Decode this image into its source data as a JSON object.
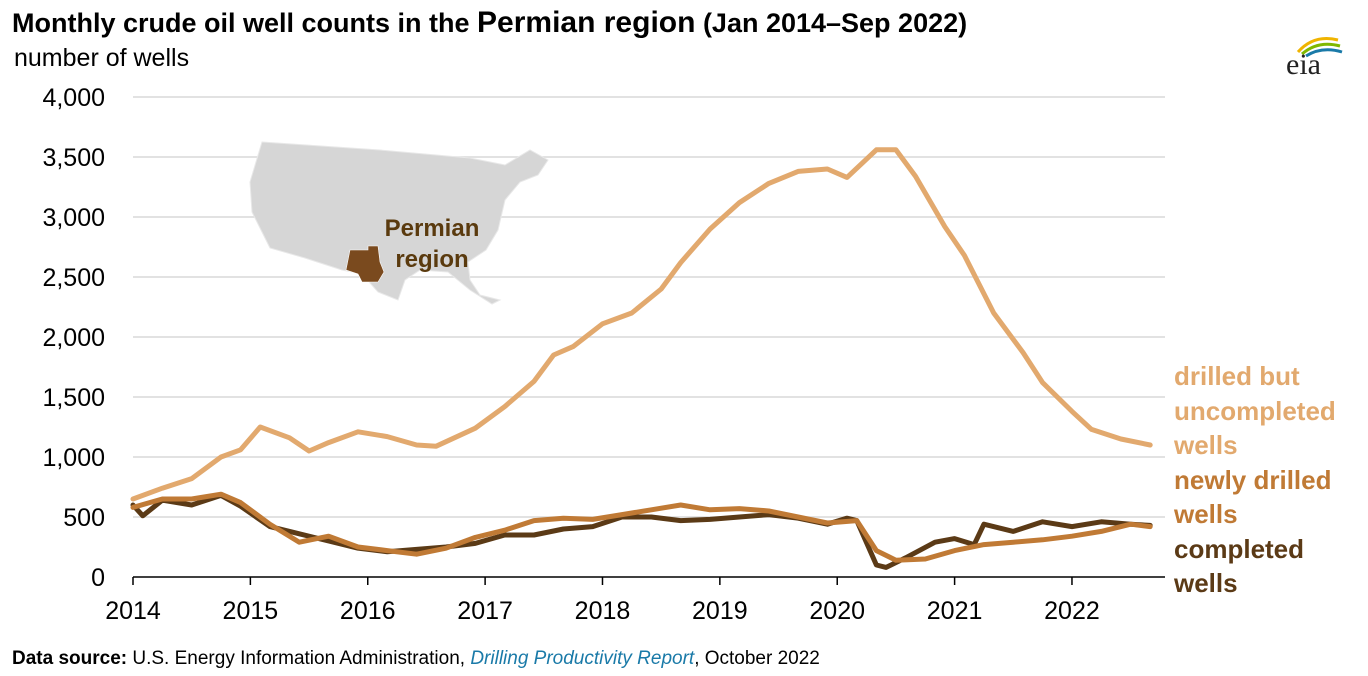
{
  "title_main": "Monthly crude oil well counts in the ",
  "title_region": "Permian region",
  "title_period": " (Jan 2014–Sep 2022)",
  "subtitle": "number of wells",
  "logo_text": "eia",
  "map_label_line1": "Permian",
  "map_label_line2": "region",
  "source": {
    "label": "Data source:",
    "text1": " U.S. Energy Information Administration, ",
    "report": "Drilling Productivity Report",
    "text2": ", October 2022"
  },
  "colors": {
    "duc": "#e2a96e",
    "drilled": "#c07a35",
    "completed": "#5b3a16",
    "grid": "#d9d9d9",
    "map": "#d6d6d6",
    "permian": "#7a4a1e"
  },
  "chart_data": {
    "type": "line",
    "ylim": [
      0,
      4000
    ],
    "yticks": [
      0,
      500,
      1000,
      1500,
      2000,
      2500,
      3000,
      3500,
      4000
    ],
    "ytick_labels": [
      "0",
      "500",
      "1,000",
      "1,500",
      "2,000",
      "2,500",
      "3,000",
      "3,500",
      "4,000"
    ],
    "xticks": [
      2014,
      2015,
      2016,
      2017,
      2018,
      2019,
      2020,
      2021,
      2022
    ],
    "xtick_labels": [
      "2014",
      "2015",
      "2016",
      "2017",
      "2018",
      "2019",
      "2020",
      "2021",
      "2022"
    ],
    "x_start": "2014-01",
    "x_end": "2022-09",
    "series": [
      {
        "name": "drilled but uncompleted wells",
        "legend_lines": [
          "drilled but",
          "uncompleted",
          "wells"
        ],
        "color": "#e2a96e",
        "points": [
          [
            "2014-01",
            650
          ],
          [
            "2014-04",
            740
          ],
          [
            "2014-07",
            820
          ],
          [
            "2014-10",
            1000
          ],
          [
            "2014-12",
            1060
          ],
          [
            "2015-02",
            1250
          ],
          [
            "2015-05",
            1160
          ],
          [
            "2015-07",
            1050
          ],
          [
            "2015-09",
            1120
          ],
          [
            "2015-12",
            1210
          ],
          [
            "2016-03",
            1170
          ],
          [
            "2016-06",
            1100
          ],
          [
            "2016-08",
            1090
          ],
          [
            "2016-12",
            1240
          ],
          [
            "2017-03",
            1420
          ],
          [
            "2017-06",
            1630
          ],
          [
            "2017-08",
            1850
          ],
          [
            "2017-10",
            1920
          ],
          [
            "2018-01",
            2110
          ],
          [
            "2018-04",
            2200
          ],
          [
            "2018-07",
            2400
          ],
          [
            "2018-09",
            2620
          ],
          [
            "2018-12",
            2900
          ],
          [
            "2019-03",
            3120
          ],
          [
            "2019-06",
            3280
          ],
          [
            "2019-09",
            3380
          ],
          [
            "2019-12",
            3400
          ],
          [
            "2020-02",
            3330
          ],
          [
            "2020-05",
            3560
          ],
          [
            "2020-07",
            3560
          ],
          [
            "2020-09",
            3340
          ],
          [
            "2020-12",
            2920
          ],
          [
            "2021-02",
            2680
          ],
          [
            "2021-05",
            2200
          ],
          [
            "2021-08",
            1870
          ],
          [
            "2021-10",
            1620
          ],
          [
            "2022-01",
            1380
          ],
          [
            "2022-03",
            1230
          ],
          [
            "2022-06",
            1150
          ],
          [
            "2022-09",
            1100
          ]
        ]
      },
      {
        "name": "newly drilled wells",
        "legend_lines": [
          "newly drilled",
          "wells"
        ],
        "color": "#c07a35",
        "points": [
          [
            "2014-01",
            580
          ],
          [
            "2014-04",
            650
          ],
          [
            "2014-07",
            650
          ],
          [
            "2014-10",
            690
          ],
          [
            "2014-12",
            620
          ],
          [
            "2015-03",
            440
          ],
          [
            "2015-06",
            290
          ],
          [
            "2015-09",
            340
          ],
          [
            "2015-12",
            250
          ],
          [
            "2016-03",
            220
          ],
          [
            "2016-06",
            190
          ],
          [
            "2016-09",
            240
          ],
          [
            "2016-12",
            330
          ],
          [
            "2017-03",
            390
          ],
          [
            "2017-06",
            470
          ],
          [
            "2017-09",
            490
          ],
          [
            "2017-12",
            480
          ],
          [
            "2018-03",
            520
          ],
          [
            "2018-06",
            560
          ],
          [
            "2018-09",
            600
          ],
          [
            "2018-12",
            560
          ],
          [
            "2019-03",
            570
          ],
          [
            "2019-06",
            550
          ],
          [
            "2019-09",
            500
          ],
          [
            "2019-12",
            450
          ],
          [
            "2020-03",
            470
          ],
          [
            "2020-05",
            220
          ],
          [
            "2020-07",
            140
          ],
          [
            "2020-10",
            150
          ],
          [
            "2021-01",
            220
          ],
          [
            "2021-04",
            270
          ],
          [
            "2021-07",
            290
          ],
          [
            "2021-10",
            310
          ],
          [
            "2022-01",
            340
          ],
          [
            "2022-04",
            380
          ],
          [
            "2022-07",
            440
          ],
          [
            "2022-09",
            420
          ]
        ]
      },
      {
        "name": "completed wells",
        "legend_lines": [
          "completed",
          "wells"
        ],
        "color": "#5b3a16",
        "points": [
          [
            "2014-01",
            600
          ],
          [
            "2014-02",
            510
          ],
          [
            "2014-04",
            640
          ],
          [
            "2014-07",
            600
          ],
          [
            "2014-10",
            680
          ],
          [
            "2014-12",
            590
          ],
          [
            "2015-03",
            420
          ],
          [
            "2015-06",
            360
          ],
          [
            "2015-09",
            300
          ],
          [
            "2015-12",
            240
          ],
          [
            "2016-03",
            210
          ],
          [
            "2016-06",
            230
          ],
          [
            "2016-09",
            250
          ],
          [
            "2016-12",
            280
          ],
          [
            "2017-03",
            350
          ],
          [
            "2017-06",
            350
          ],
          [
            "2017-09",
            400
          ],
          [
            "2017-12",
            420
          ],
          [
            "2018-03",
            500
          ],
          [
            "2018-06",
            500
          ],
          [
            "2018-09",
            470
          ],
          [
            "2018-12",
            480
          ],
          [
            "2019-03",
            500
          ],
          [
            "2019-06",
            520
          ],
          [
            "2019-09",
            490
          ],
          [
            "2019-12",
            440
          ],
          [
            "2020-02",
            490
          ],
          [
            "2020-03",
            470
          ],
          [
            "2020-05",
            100
          ],
          [
            "2020-06",
            80
          ],
          [
            "2020-08",
            160
          ],
          [
            "2020-11",
            290
          ],
          [
            "2021-01",
            320
          ],
          [
            "2021-03",
            270
          ],
          [
            "2021-04",
            440
          ],
          [
            "2021-07",
            380
          ],
          [
            "2021-10",
            460
          ],
          [
            "2022-01",
            420
          ],
          [
            "2022-04",
            460
          ],
          [
            "2022-07",
            440
          ],
          [
            "2022-09",
            430
          ]
        ]
      }
    ]
  }
}
